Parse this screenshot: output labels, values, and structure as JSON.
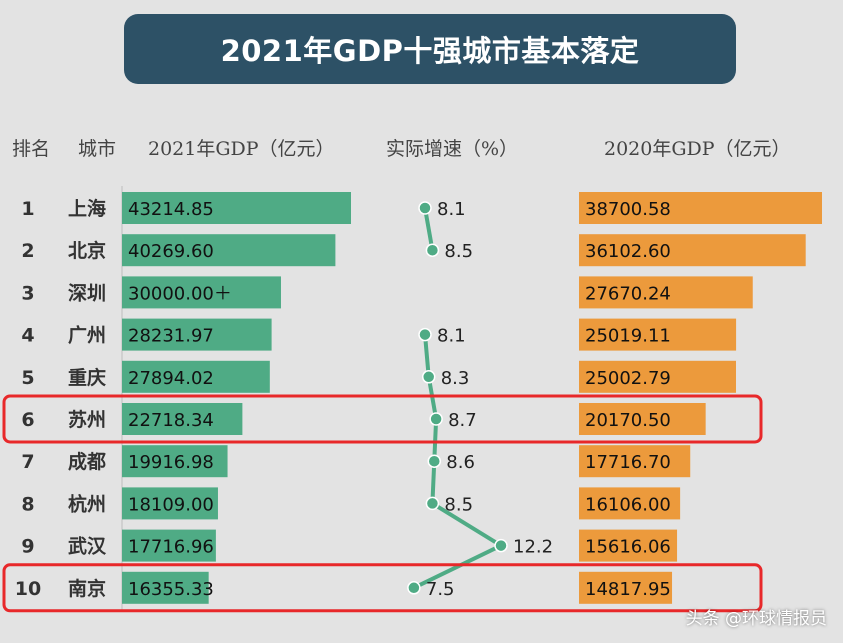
{
  "title": "2021年GDP十强城市基本落定",
  "headers": {
    "rank": "排名",
    "city": "城市",
    "gdp2021": "2021年GDP（亿元）",
    "growth": "实际增速（%）",
    "gdp2020": "2020年GDP（亿元）"
  },
  "watermark": "头条 @环球情报员",
  "colors": {
    "title_bg": "#2d5166",
    "gdp2021_bar": "#4fab85",
    "gdp2020_bar": "#ec9a3c",
    "growth_line": "#4fab85",
    "highlight": "#e8282a"
  },
  "chart_data": {
    "type": "bar",
    "categories": [
      "上海",
      "北京",
      "深圳",
      "广州",
      "重庆",
      "苏州",
      "成都",
      "杭州",
      "武汉",
      "南京"
    ],
    "ranks": [
      "1",
      "2",
      "3",
      "4",
      "5",
      "6",
      "7",
      "8",
      "9",
      "10"
    ],
    "series": [
      {
        "name": "2021年GDP（亿元）",
        "values": [
          43214.85,
          40269.6,
          30000.0,
          28231.97,
          27894.02,
          22718.34,
          19916.98,
          18109.0,
          17716.96,
          16355.33
        ],
        "labels": [
          "43214.85",
          "40269.60",
          "30000.00＋",
          "28231.97",
          "27894.02",
          "22718.34",
          "19916.98",
          "18109.00",
          "17716.96",
          "16355.33"
        ]
      },
      {
        "name": "实际增速（%）",
        "values": [
          8.1,
          8.5,
          null,
          8.1,
          8.3,
          8.7,
          8.6,
          8.5,
          12.2,
          7.5
        ],
        "labels": [
          "8.1",
          "8.5",
          "",
          "8.1",
          "8.3",
          "8.7",
          "8.6",
          "8.5",
          "12.2",
          "7.5"
        ]
      },
      {
        "name": "2020年GDP（亿元）",
        "values": [
          38700.58,
          36102.6,
          27670.24,
          25019.11,
          25002.79,
          20170.5,
          17716.7,
          16106.0,
          15616.06,
          14817.95
        ],
        "labels": [
          "38700.58",
          "36102.60",
          "27670.24",
          "25019.11",
          "25002.79",
          "20170.50",
          "17716.70",
          "16106.00",
          "15616.06",
          "14817.95"
        ]
      }
    ],
    "highlighted": [
      "苏州",
      "南京"
    ]
  }
}
